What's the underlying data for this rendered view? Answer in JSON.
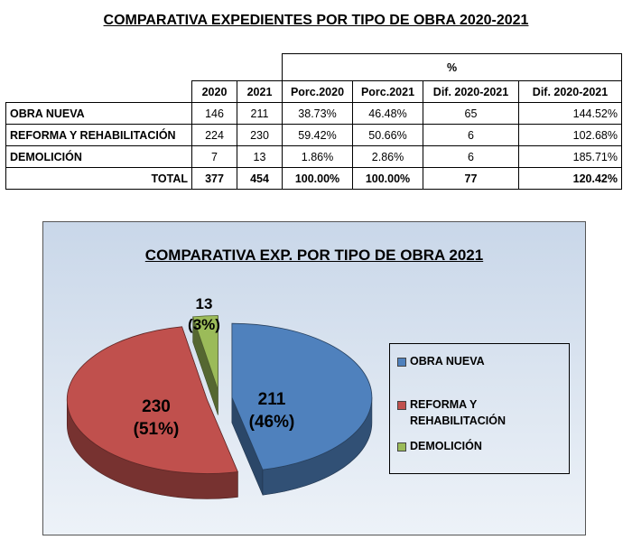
{
  "page_title": "COMPARATIVA EXPEDIENTES POR TIPO DE OBRA 2020-2021",
  "table": {
    "group_header": "%",
    "columns": [
      "2020",
      "2021",
      "Porc.2020",
      "Porc.2021",
      "Dif. 2020-2021",
      "Dif. 2020-2021"
    ],
    "rows": [
      {
        "label": "OBRA NUEVA",
        "cells": [
          "146",
          "211",
          "38.73%",
          "46.48%",
          "65",
          "144.52%"
        ]
      },
      {
        "label": "REFORMA Y REHABILITACIÓN",
        "cells": [
          "224",
          "230",
          "59.42%",
          "50.66%",
          "6",
          "102.68%"
        ]
      },
      {
        "label": "DEMOLICIÓN",
        "cells": [
          "7",
          "13",
          "1.86%",
          "2.86%",
          "6",
          "185.71%"
        ]
      }
    ],
    "total": {
      "label": "TOTAL",
      "cells": [
        "377",
        "454",
        "100.00%",
        "100.00%",
        "77",
        "120.42%"
      ]
    }
  },
  "chart_data": {
    "type": "pie",
    "title": "COMPARATIVA EXP. POR TIPO DE OBRA 2021",
    "slices": [
      {
        "name": "OBRA NUEVA",
        "value": 211,
        "label": "211",
        "pct_label": "(46%)",
        "color": "#4f81bd"
      },
      {
        "name": "REFORMA Y REHABILITACIÓN",
        "value": 230,
        "label": "230",
        "pct_label": "(51%)",
        "color": "#c0504d"
      },
      {
        "name": "DEMOLICIÓN",
        "value": 13,
        "label": "13",
        "pct_label": "(3%)",
        "color": "#9bbb59"
      }
    ],
    "legend": [
      "OBRA NUEVA",
      "REFORMA Y REHABILITACIÓN",
      "DEMOLICIÓN"
    ],
    "legend_position": "right",
    "style": "3d-exploded"
  }
}
